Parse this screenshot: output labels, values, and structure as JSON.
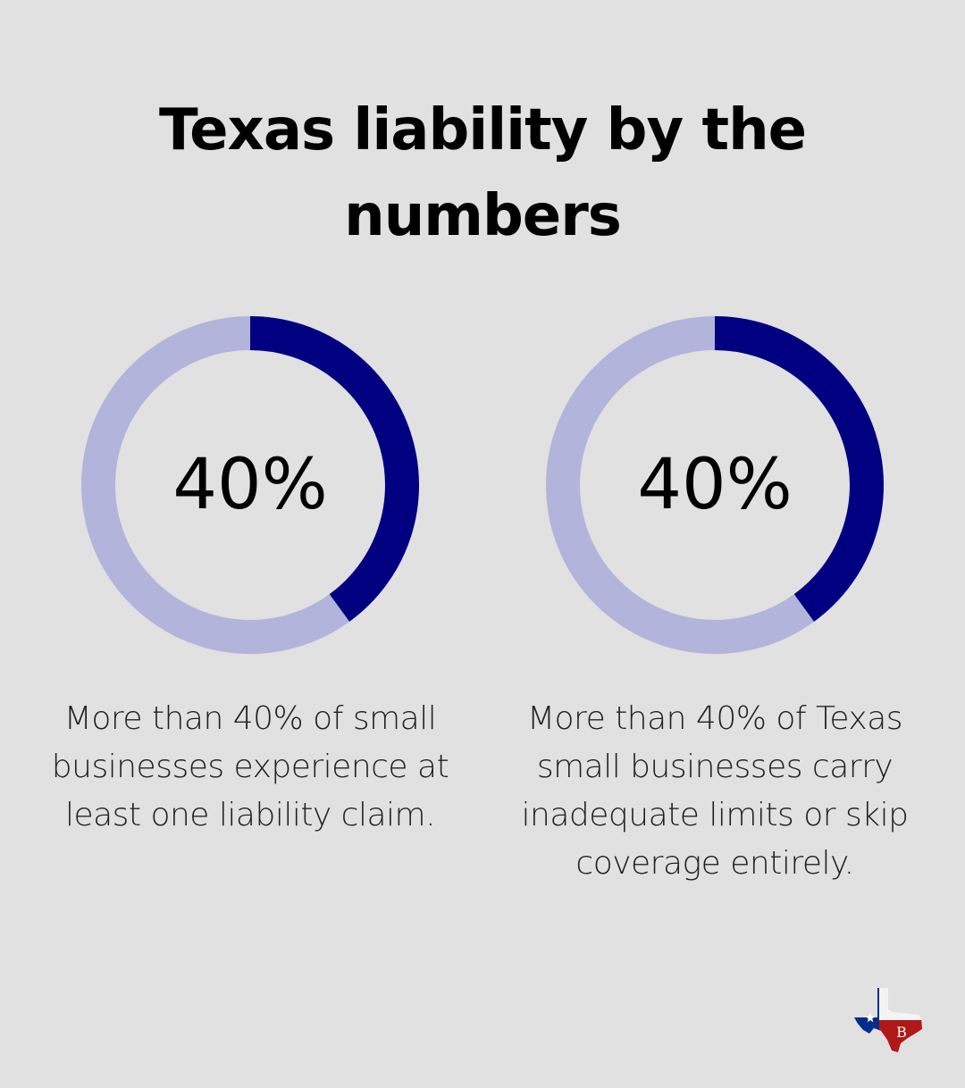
{
  "title": "Texas liability by the numbers",
  "colors": {
    "background": "#e0e1e0",
    "ring_track": "#b3b4dc",
    "ring_fill": "#000080",
    "text": "#000000"
  },
  "chart_data": [
    {
      "type": "pie",
      "value": 40,
      "max": 100,
      "label": "40%",
      "description": "More than 40% of small businesses experience at least one liability claim."
    },
    {
      "type": "pie",
      "value": 40,
      "max": 100,
      "label": "40%",
      "description": "More than 40% of Texas small businesses carry inadequate limits or skip coverage entirely."
    }
  ],
  "logo": {
    "icon": "texas-flag-map-logo",
    "monogram": "B"
  }
}
